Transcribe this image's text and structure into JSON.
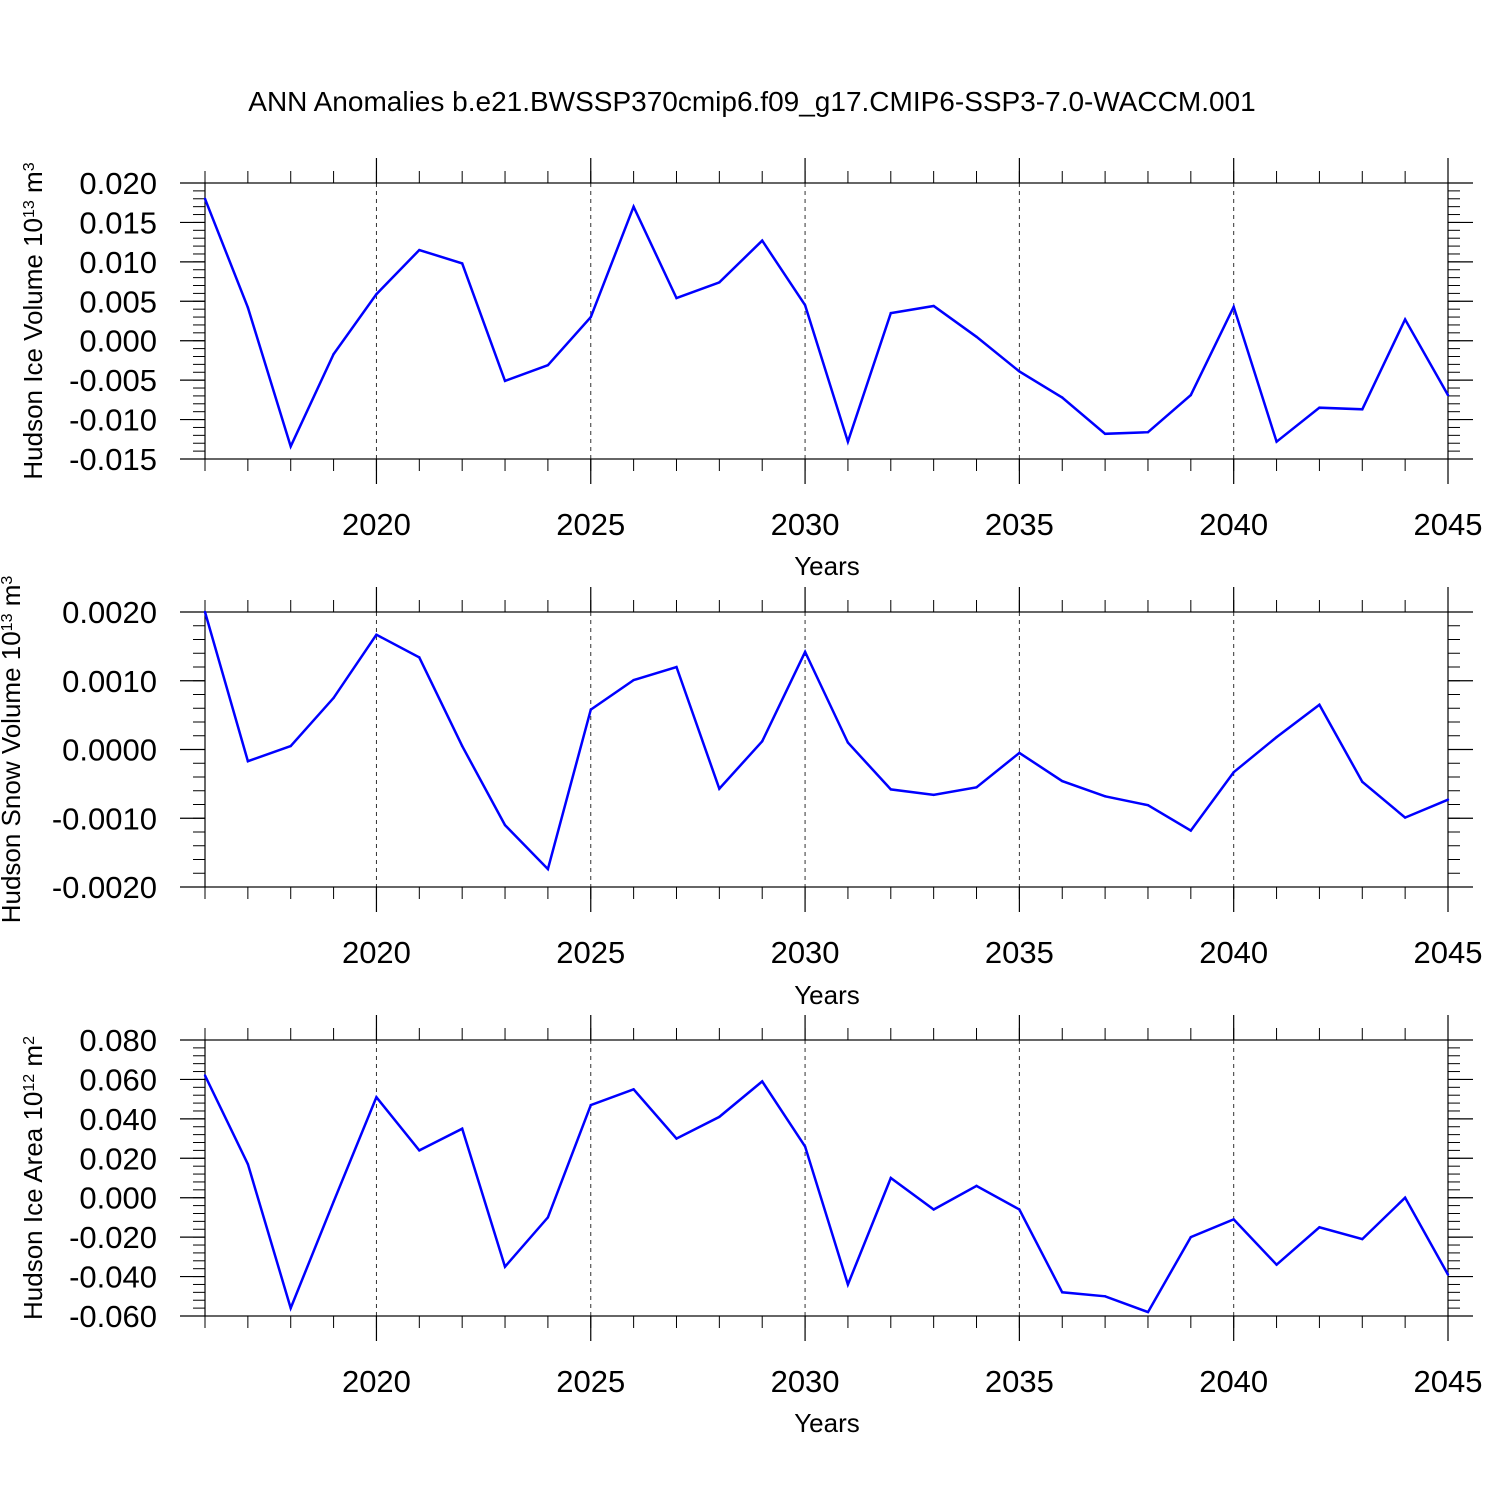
{
  "title": "ANN Anomalies b.e21.BWSSP370cmip6.f09_g17.CMIP6-SSP3-7.0-WACCM.001",
  "colors": {
    "line": "#0000ff",
    "axis": "#000000",
    "grid": "#000000"
  },
  "chart_data": [
    {
      "type": "line",
      "ylabel_text": "Hudson Ice Volume 10",
      "ylabel_exp": "13",
      "ylabel_unit": " m",
      "ylabel_unit_exp": "3",
      "xlabel": "Years",
      "xlim": [
        2016,
        2045
      ],
      "ylim": [
        -0.015,
        0.02
      ],
      "y_ticks": [
        "0.020",
        "0.015",
        "0.010",
        "0.005",
        "0.000",
        "-0.005",
        "-0.010",
        "-0.015"
      ],
      "y_tick_values": [
        0.02,
        0.015,
        0.01,
        0.005,
        0.0,
        -0.005,
        -0.01,
        -0.015
      ],
      "x_ticks": [
        "2020",
        "2025",
        "2030",
        "2035",
        "2040",
        "2045"
      ],
      "x_tick_values": [
        2020,
        2025,
        2030,
        2035,
        2040,
        2045
      ],
      "grid": "vertical dashed at major x ticks",
      "x": [
        2016,
        2017,
        2018,
        2019,
        2020,
        2021,
        2022,
        2023,
        2024,
        2025,
        2026,
        2027,
        2028,
        2029,
        2030,
        2031,
        2032,
        2033,
        2034,
        2035,
        2036,
        2037,
        2038,
        2039,
        2040,
        2041,
        2042,
        2043,
        2044,
        2045
      ],
      "y": [
        0.018,
        0.0042,
        -0.0134,
        -0.0017,
        0.0059,
        0.0115,
        0.0098,
        -0.0051,
        -0.0031,
        0.003,
        0.017,
        0.0054,
        0.0074,
        0.0127,
        0.0045,
        -0.0128,
        0.0035,
        0.0044,
        0.0005,
        -0.0039,
        -0.0072,
        -0.0118,
        -0.0116,
        -0.0069,
        0.0043,
        -0.0128,
        -0.0085,
        -0.0087,
        0.0027,
        -0.0069
      ]
    },
    {
      "type": "line",
      "ylabel_text": "Hudson Snow Volume 10",
      "ylabel_exp": "13",
      "ylabel_unit": " m",
      "ylabel_unit_exp": "3",
      "xlabel": "Years",
      "xlim": [
        2016,
        2045
      ],
      "ylim": [
        -0.002,
        0.002
      ],
      "y_ticks": [
        "0.0020",
        "0.0010",
        "0.0000",
        "-0.0010",
        "-0.0020"
      ],
      "y_tick_values": [
        0.002,
        0.001,
        0.0,
        -0.001,
        -0.002
      ],
      "x_ticks": [
        "2020",
        "2025",
        "2030",
        "2035",
        "2040",
        "2045"
      ],
      "x_tick_values": [
        2020,
        2025,
        2030,
        2035,
        2040,
        2045
      ],
      "grid": "vertical dashed at major x ticks",
      "x": [
        2016,
        2017,
        2018,
        2019,
        2020,
        2021,
        2022,
        2023,
        2024,
        2025,
        2026,
        2027,
        2028,
        2029,
        2030,
        2031,
        2032,
        2033,
        2034,
        2035,
        2036,
        2037,
        2038,
        2039,
        2040,
        2041,
        2042,
        2043,
        2044,
        2045
      ],
      "y": [
        0.002,
        -0.00017,
        5e-05,
        0.00075,
        0.00167,
        0.00134,
        5e-05,
        -0.0011,
        -0.00174,
        0.00058,
        0.00101,
        0.0012,
        -0.00057,
        0.00012,
        0.00142,
        0.0001,
        -0.00058,
        -0.00066,
        -0.00055,
        -5e-05,
        -0.00046,
        -0.00068,
        -0.00081,
        -0.00118,
        -0.00033,
        0.00018,
        0.00065,
        -0.00047,
        -0.00099,
        -0.00073
      ]
    },
    {
      "type": "line",
      "ylabel_text": "Hudson Ice Area 10",
      "ylabel_exp": "12",
      "ylabel_unit": " m",
      "ylabel_unit_exp": "2",
      "xlabel": "Years",
      "xlim": [
        2016,
        2045
      ],
      "ylim": [
        -0.06,
        0.08
      ],
      "y_ticks": [
        "0.080",
        "0.060",
        "0.040",
        "0.020",
        "0.000",
        "-0.020",
        "-0.040",
        "-0.060"
      ],
      "y_tick_values": [
        0.08,
        0.06,
        0.04,
        0.02,
        0.0,
        -0.02,
        -0.04,
        -0.06
      ],
      "x_ticks": [
        "2020",
        "2025",
        "2030",
        "2035",
        "2040",
        "2045"
      ],
      "x_tick_values": [
        2020,
        2025,
        2030,
        2035,
        2040,
        2045
      ],
      "grid": "vertical dashed at major x ticks",
      "x": [
        2016,
        2017,
        2018,
        2019,
        2020,
        2021,
        2022,
        2023,
        2024,
        2025,
        2026,
        2027,
        2028,
        2029,
        2030,
        2031,
        2032,
        2033,
        2034,
        2035,
        2036,
        2037,
        2038,
        2039,
        2040,
        2041,
        2042,
        2043,
        2044,
        2045
      ],
      "y": [
        0.062,
        0.017,
        -0.056,
        -0.002,
        0.051,
        0.024,
        0.035,
        -0.035,
        -0.01,
        0.047,
        0.055,
        0.03,
        0.041,
        0.059,
        0.026,
        -0.044,
        0.01,
        -0.006,
        0.006,
        -0.006,
        -0.048,
        -0.05,
        -0.058,
        -0.02,
        -0.011,
        -0.034,
        -0.015,
        -0.021,
        0.0,
        -0.039
      ]
    }
  ]
}
